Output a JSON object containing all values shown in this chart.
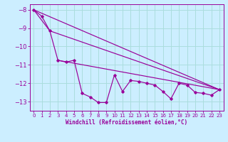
{
  "xlabel": "Windchill (Refroidissement éolien,°C)",
  "bg_color": "#cceeff",
  "line_color": "#990099",
  "grid_color": "#aadddd",
  "xlim": [
    -0.5,
    23.5
  ],
  "ylim": [
    -13.5,
    -7.7
  ],
  "yticks": [
    -13,
    -12,
    -11,
    -10,
    -9,
    -8
  ],
  "xticks": [
    0,
    1,
    2,
    3,
    4,
    5,
    6,
    7,
    8,
    9,
    10,
    11,
    12,
    13,
    14,
    15,
    16,
    17,
    18,
    19,
    20,
    21,
    22,
    23
  ],
  "series1_x": [
    0,
    1,
    2,
    3,
    4,
    5,
    6,
    7,
    8,
    9,
    10,
    11,
    12,
    13,
    14,
    15,
    16,
    17,
    18,
    19,
    20,
    21,
    22,
    23
  ],
  "series1_y": [
    -8.0,
    -8.35,
    -9.15,
    -10.75,
    -10.85,
    -10.75,
    -12.55,
    -12.75,
    -13.05,
    -13.05,
    -11.55,
    -12.45,
    -11.85,
    -11.9,
    -12.0,
    -12.1,
    -12.45,
    -12.85,
    -12.0,
    -12.1,
    -12.5,
    -12.55,
    -12.65,
    -12.35
  ],
  "series2_x": [
    0,
    23
  ],
  "series2_y": [
    -8.0,
    -12.35
  ],
  "series3_x": [
    0,
    2,
    23
  ],
  "series3_y": [
    -8.0,
    -9.15,
    -12.35
  ],
  "series4_x": [
    3,
    23
  ],
  "series4_y": [
    -10.75,
    -12.35
  ]
}
